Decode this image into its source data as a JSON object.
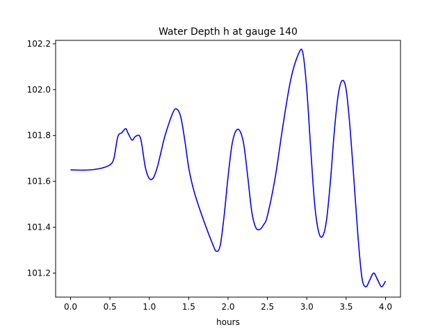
{
  "chart_data": {
    "type": "line",
    "title": "Water Depth h at gauge 140",
    "xlabel": "hours",
    "ylabel": "",
    "xlim": [
      -0.19,
      4.19
    ],
    "ylim": [
      101.095,
      102.215
    ],
    "xticks": [
      0.0,
      0.5,
      1.0,
      1.5,
      2.0,
      2.5,
      3.0,
      3.5,
      4.0
    ],
    "xtick_labels": [
      "0.0",
      "0.5",
      "1.0",
      "1.5",
      "2.0",
      "2.5",
      "3.0",
      "3.5",
      "4.0"
    ],
    "yticks": [
      101.2,
      101.4,
      101.6,
      101.8,
      102.0,
      102.2
    ],
    "ytick_labels": [
      "101.2",
      "101.4",
      "101.6",
      "101.8",
      "102.0",
      "102.2"
    ],
    "grid": false,
    "series": [
      {
        "color": "#0000ff",
        "x": [
          0.0,
          0.1,
          0.2,
          0.3,
          0.4,
          0.5,
          0.55,
          0.6,
          0.65,
          0.7,
          0.73,
          0.78,
          0.82,
          0.87,
          0.9,
          0.95,
          1.0,
          1.05,
          1.1,
          1.15,
          1.2,
          1.3,
          1.35,
          1.4,
          1.45,
          1.5,
          1.55,
          1.6,
          1.7,
          1.8,
          1.85,
          1.9,
          1.95,
          2.0,
          2.05,
          2.1,
          2.15,
          2.2,
          2.25,
          2.3,
          2.35,
          2.4,
          2.45,
          2.5,
          2.6,
          2.7,
          2.8,
          2.9,
          2.95,
          3.0,
          3.05,
          3.1,
          3.15,
          3.2,
          3.25,
          3.3,
          3.35,
          3.4,
          3.45,
          3.5,
          3.55,
          3.6,
          3.65,
          3.7,
          3.75,
          3.8,
          3.85,
          3.9,
          3.95,
          4.0
        ],
        "y": [
          101.65,
          101.649,
          101.649,
          101.652,
          101.658,
          101.672,
          101.7,
          101.795,
          101.812,
          101.83,
          101.81,
          101.78,
          101.795,
          101.8,
          101.77,
          101.66,
          101.612,
          101.615,
          101.66,
          101.73,
          101.8,
          101.9,
          101.915,
          101.88,
          101.78,
          101.66,
          101.58,
          101.52,
          101.42,
          101.33,
          101.295,
          101.32,
          101.45,
          101.62,
          101.76,
          101.82,
          101.82,
          101.76,
          101.62,
          101.47,
          101.4,
          101.39,
          101.41,
          101.45,
          101.62,
          101.85,
          102.05,
          102.16,
          102.16,
          102.0,
          101.74,
          101.5,
          101.38,
          101.36,
          101.43,
          101.6,
          101.82,
          101.98,
          102.04,
          102.0,
          101.83,
          101.6,
          101.36,
          101.18,
          101.14,
          101.17,
          101.2,
          101.17,
          101.14,
          101.165
        ]
      }
    ]
  }
}
